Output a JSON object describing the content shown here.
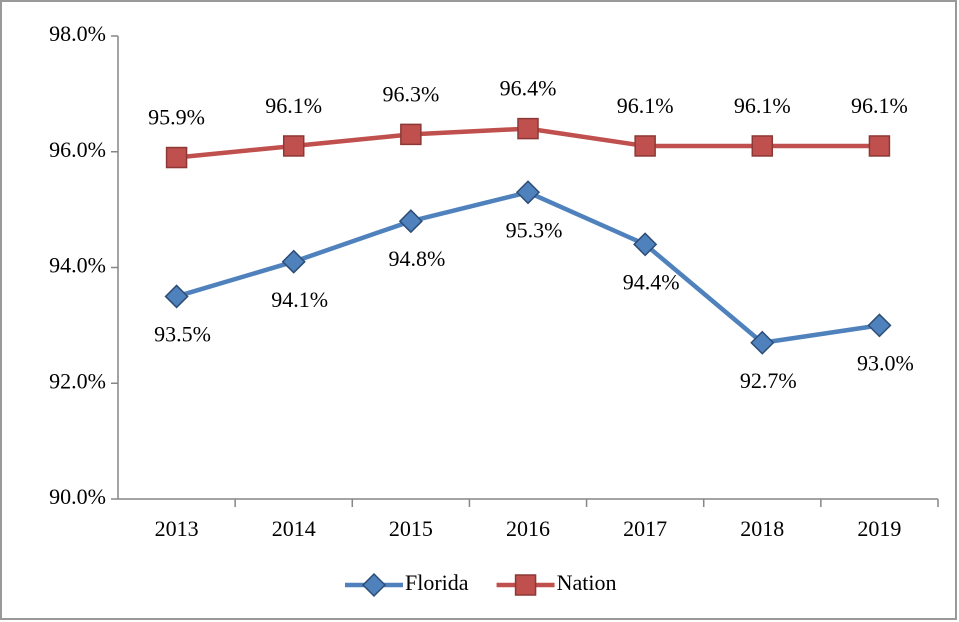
{
  "chart_data": {
    "type": "line",
    "categories": [
      "2013",
      "2014",
      "2015",
      "2016",
      "2017",
      "2018",
      "2019"
    ],
    "series": [
      {
        "name": "Florida",
        "color": "#4f81bd",
        "marker": "diamond",
        "values": [
          93.5,
          94.1,
          94.8,
          95.3,
          94.4,
          92.7,
          93.0
        ],
        "value_labels": [
          "93.5%",
          "94.1%",
          "94.8%",
          "95.3%",
          "94.4%",
          "92.7%",
          "93.0%"
        ]
      },
      {
        "name": "Nation",
        "color": "#c0504d",
        "marker": "square",
        "values": [
          95.9,
          96.1,
          96.3,
          96.4,
          96.1,
          96.1,
          96.1
        ],
        "value_labels": [
          "95.9%",
          "96.1%",
          "96.3%",
          "96.4%",
          "96.1%",
          "96.1%",
          "96.1%"
        ]
      }
    ],
    "ylim": [
      90,
      98
    ],
    "yticks": [
      {
        "value": 90,
        "label": "90.0%"
      },
      {
        "value": 92,
        "label": "92.0%"
      },
      {
        "value": 94,
        "label": "94.0%"
      },
      {
        "value": 96,
        "label": "96.0%"
      },
      {
        "value": 98,
        "label": "98.0%"
      }
    ],
    "grid": false,
    "legend": "bottom"
  }
}
